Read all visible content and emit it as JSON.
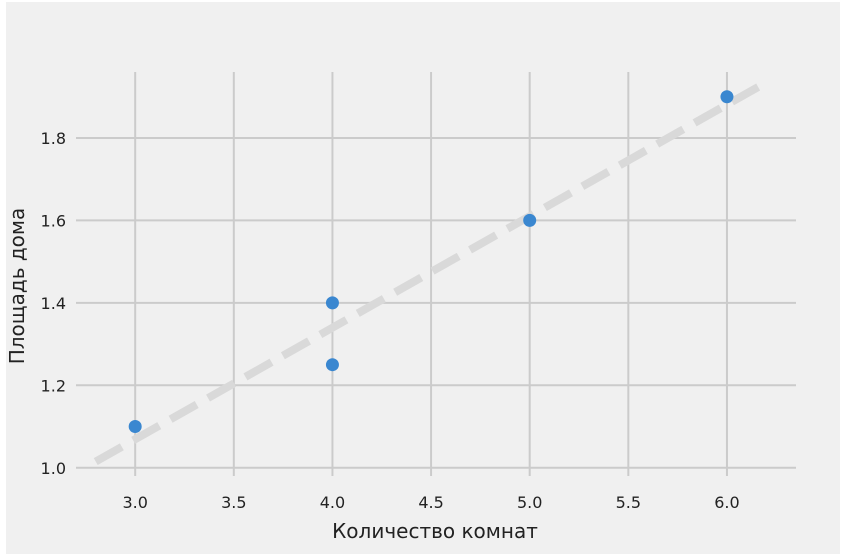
{
  "chart_data": {
    "type": "scatter",
    "xlabel": "Количество комнат",
    "ylabel": "Площадь дома",
    "xlim": [
      2.7,
      6.35
    ],
    "ylim": [
      0.98,
      1.96
    ],
    "xticks": [
      3.0,
      3.5,
      4.0,
      4.5,
      5.0,
      5.5,
      6.0
    ],
    "xtick_labels": [
      "3.0",
      "3.5",
      "4.0",
      "4.5",
      "5.0",
      "5.5",
      "6.0"
    ],
    "yticks": [
      1.0,
      1.2,
      1.4,
      1.6,
      1.8
    ],
    "ytick_labels": [
      "1.0",
      "1.2",
      "1.4",
      "1.6",
      "1.8"
    ],
    "grid": true,
    "points": [
      {
        "x": 3.0,
        "y": 1.1
      },
      {
        "x": 4.0,
        "y": 1.4
      },
      {
        "x": 4.0,
        "y": 1.25
      },
      {
        "x": 5.0,
        "y": 1.6
      },
      {
        "x": 6.0,
        "y": 1.9
      }
    ],
    "trend_line": {
      "style": "dashed",
      "x": [
        2.8,
        6.2
      ],
      "y": [
        1.015,
        1.935
      ]
    },
    "colors": {
      "points": "#3a87d0",
      "trend": "#d9d9d9",
      "grid": "#cbcbcb",
      "background": "#f0f0f0"
    }
  }
}
